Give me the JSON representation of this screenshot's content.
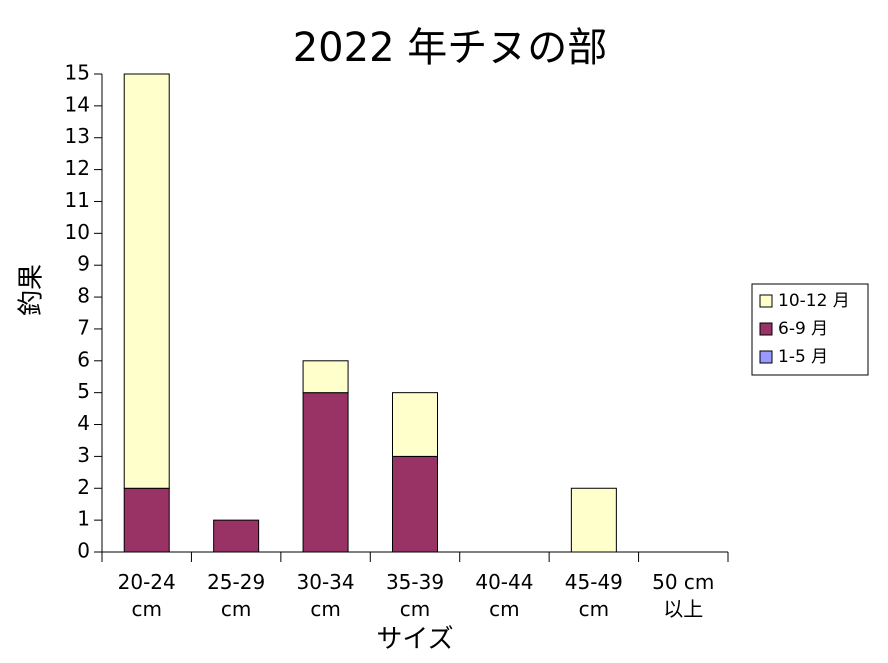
{
  "chart_data": {
    "type": "stacked_bar",
    "title": "2022 年チヌの部",
    "x_label": "サイズ",
    "y_label": "釣果",
    "categories": [
      "20-24\ncm",
      "25-29\ncm",
      "30-34\ncm",
      "35-39\ncm",
      "40-44\ncm",
      "45-49\ncm",
      "50 cm\n以上"
    ],
    "series": [
      {
        "name": "1-5 月",
        "color": "#9999ff",
        "values": [
          0,
          0,
          0,
          0,
          0,
          0,
          0
        ]
      },
      {
        "name": "6-9 月",
        "color": "#993366",
        "values": [
          2,
          1,
          5,
          3,
          0,
          0,
          0
        ]
      },
      {
        "name": "10-12 月",
        "color": "#ffffcc",
        "values": [
          13,
          0,
          1,
          2,
          0,
          2,
          0
        ]
      }
    ],
    "ylim": [
      0,
      15
    ],
    "yticks": [
      0,
      1,
      2,
      3,
      4,
      5,
      6,
      7,
      8,
      9,
      10,
      11,
      12,
      13,
      14,
      15
    ],
    "legend": "right"
  }
}
